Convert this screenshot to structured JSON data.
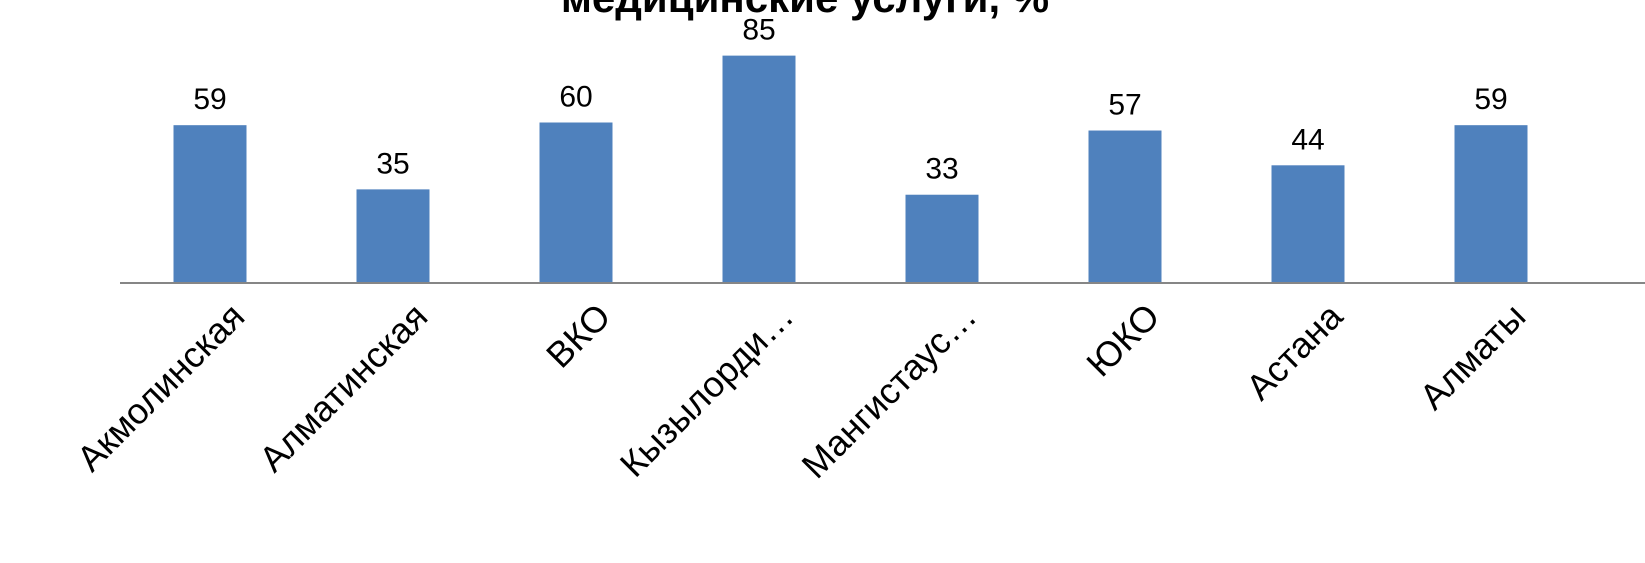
{
  "chart_data": {
    "type": "bar",
    "title": "медицинские услуги, %",
    "categories": [
      "Акмолинская",
      "Алматинская",
      "ВКО",
      "Кызылорди…",
      "Мангистаус…",
      "ЮКО",
      "Астана",
      "Алматы"
    ],
    "values": [
      59,
      35,
      60,
      85,
      33,
      57,
      44,
      59
    ],
    "xlabel": "",
    "ylabel": "",
    "ylim": [
      0,
      100
    ],
    "grid": false,
    "legend": "none",
    "colors": {
      "bar": "#4f81bd",
      "axis": "#868686",
      "text": "#000000"
    }
  }
}
